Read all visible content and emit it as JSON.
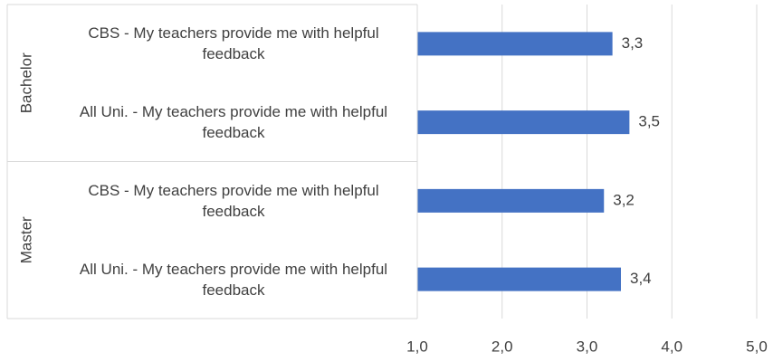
{
  "chart_data": {
    "type": "bar",
    "orientation": "horizontal",
    "groups": [
      "Bachelor",
      "Master"
    ],
    "categories": [
      "CBS - My teachers provide me with helpful feedback",
      "All Uni. - My teachers provide me with helpful feedback",
      "CBS - My teachers provide me with helpful feedback",
      "All Uni. - My teachers provide me with helpful feedback"
    ],
    "values": [
      3.3,
      3.5,
      3.2,
      3.4
    ],
    "value_labels": [
      "3,3",
      "3,5",
      "3,2",
      "3,4"
    ],
    "color": "#4472c4",
    "xlim": [
      1,
      5
    ],
    "xticks": [
      {
        "value": 1,
        "label": "1,0"
      },
      {
        "value": 2,
        "label": "2,0"
      },
      {
        "value": 3,
        "label": "3,0"
      },
      {
        "value": 4,
        "label": "4,0"
      },
      {
        "value": 5,
        "label": "5,0"
      }
    ],
    "grid": true
  }
}
